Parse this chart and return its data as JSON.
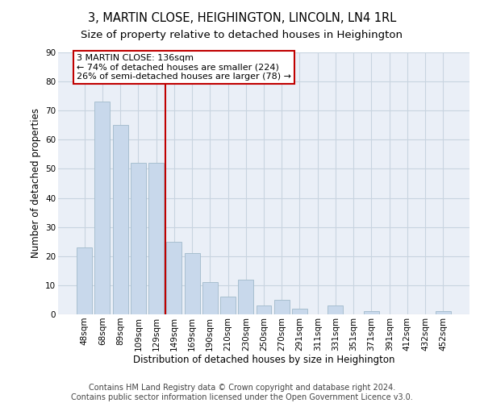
{
  "title": "3, MARTIN CLOSE, HEIGHINGTON, LINCOLN, LN4 1RL",
  "subtitle": "Size of property relative to detached houses in Heighington",
  "xlabel": "Distribution of detached houses by size in Heighington",
  "ylabel": "Number of detached properties",
  "categories": [
    "48sqm",
    "68sqm",
    "89sqm",
    "109sqm",
    "129sqm",
    "149sqm",
    "169sqm",
    "190sqm",
    "210sqm",
    "230sqm",
    "250sqm",
    "270sqm",
    "291sqm",
    "311sqm",
    "331sqm",
    "351sqm",
    "371sqm",
    "391sqm",
    "412sqm",
    "432sqm",
    "452sqm"
  ],
  "values": [
    23,
    73,
    65,
    52,
    52,
    25,
    21,
    11,
    6,
    12,
    3,
    5,
    2,
    0,
    3,
    0,
    1,
    0,
    0,
    0,
    1
  ],
  "bar_color": "#c8d8eb",
  "bar_edge_color": "#a8bfd0",
  "vline_x": 4.5,
  "vline_color": "#c00000",
  "annotation_text": "3 MARTIN CLOSE: 136sqm\n← 74% of detached houses are smaller (224)\n26% of semi-detached houses are larger (78) →",
  "annotation_box_color": "#c00000",
  "ylim": [
    0,
    90
  ],
  "yticks": [
    0,
    10,
    20,
    30,
    40,
    50,
    60,
    70,
    80,
    90
  ],
  "grid_color": "#c8d4e0",
  "bg_color": "#eaeff7",
  "footnote": "Contains HM Land Registry data © Crown copyright and database right 2024.\nContains public sector information licensed under the Open Government Licence v3.0.",
  "title_fontsize": 10.5,
  "subtitle_fontsize": 9.5,
  "axis_label_fontsize": 8.5,
  "tick_fontsize": 7.5,
  "annotation_fontsize": 8,
  "footnote_fontsize": 7
}
